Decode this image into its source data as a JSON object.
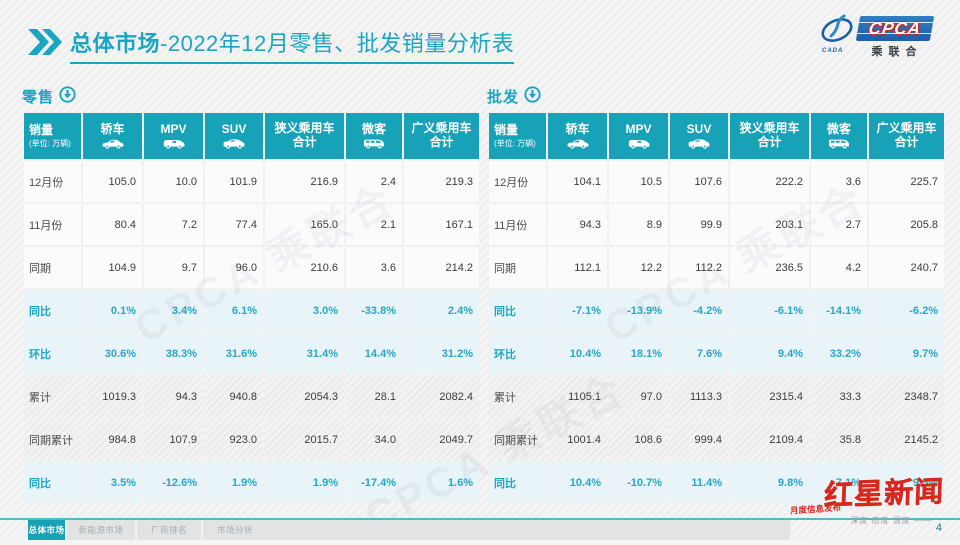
{
  "header": {
    "title_bold": "总体市场",
    "title_rest": "-2022年12月零售、批发销量分析表",
    "logo": {
      "cpca": "CPCA",
      "chenglianhui": "乘联合",
      "cada": "CADA"
    }
  },
  "unit_note": "(单位: 万辆)",
  "columns": [
    {
      "label": "销量",
      "unit": "(单位: 万辆)"
    },
    {
      "label": "轿车",
      "icon": "sedan-icon"
    },
    {
      "label": "MPV",
      "icon": "mpv-icon"
    },
    {
      "label": "SUV",
      "icon": "suv-icon"
    },
    {
      "label": "狭义乘用车",
      "label2": "合计"
    },
    {
      "label": "微客",
      "icon": "minibus-icon"
    },
    {
      "label": "广义乘用车",
      "label2": "合计"
    }
  ],
  "retail": {
    "label": "零售",
    "rows": [
      {
        "label": "12月份",
        "type": "data",
        "values": [
          "105.0",
          "10.0",
          "101.9",
          "216.9",
          "2.4",
          "219.3"
        ]
      },
      {
        "label": "11月份",
        "type": "data",
        "values": [
          "80.4",
          "7.2",
          "77.4",
          "165.0",
          "2.1",
          "167.1"
        ]
      },
      {
        "label": "同期",
        "type": "data",
        "values": [
          "104.9",
          "9.7",
          "96.0",
          "210.6",
          "3.6",
          "214.2"
        ]
      },
      {
        "label": "同比",
        "type": "pct",
        "values": [
          "0.1%",
          "3.4%",
          "6.1%",
          "3.0%",
          "-33.8%",
          "2.4%"
        ]
      },
      {
        "label": "环比",
        "type": "pct",
        "values": [
          "30.6%",
          "38.3%",
          "31.6%",
          "31.4%",
          "14.4%",
          "31.2%"
        ]
      },
      {
        "label": "累计",
        "type": "gray",
        "values": [
          "1019.3",
          "94.3",
          "940.8",
          "2054.3",
          "28.1",
          "2082.4"
        ]
      },
      {
        "label": "同期累计",
        "type": "gray",
        "values": [
          "984.8",
          "107.9",
          "923.0",
          "2015.7",
          "34.0",
          "2049.7"
        ]
      },
      {
        "label": "同比",
        "type": "pct",
        "values": [
          "3.5%",
          "-12.6%",
          "1.9%",
          "1.9%",
          "-17.4%",
          "1.6%"
        ]
      }
    ]
  },
  "wholesale": {
    "label": "批发",
    "rows": [
      {
        "label": "12月份",
        "type": "data",
        "values": [
          "104.1",
          "10.5",
          "107.6",
          "222.2",
          "3.6",
          "225.7"
        ]
      },
      {
        "label": "11月份",
        "type": "data",
        "values": [
          "94.3",
          "8.9",
          "99.9",
          "203.1",
          "2.7",
          "205.8"
        ]
      },
      {
        "label": "同期",
        "type": "data",
        "values": [
          "112.1",
          "12.2",
          "112.2",
          "236.5",
          "4.2",
          "240.7"
        ]
      },
      {
        "label": "同比",
        "type": "pct",
        "values": [
          "-7.1%",
          "-13.9%",
          "-4.2%",
          "-6.1%",
          "-14.1%",
          "-6.2%"
        ]
      },
      {
        "label": "环比",
        "type": "pct",
        "values": [
          "10.4%",
          "18.1%",
          "7.6%",
          "9.4%",
          "33.2%",
          "9.7%"
        ]
      },
      {
        "label": "累计",
        "type": "gray",
        "values": [
          "1105.1",
          "97.0",
          "1113.3",
          "2315.4",
          "33.3",
          "2348.7"
        ]
      },
      {
        "label": "同期累计",
        "type": "gray",
        "values": [
          "1001.4",
          "108.6",
          "999.4",
          "2109.4",
          "35.8",
          "2145.2"
        ]
      },
      {
        "label": "同比",
        "type": "pct",
        "values": [
          "10.4%",
          "-10.7%",
          "11.4%",
          "9.8%",
          "-7.1%",
          "9.5%"
        ]
      }
    ]
  },
  "watermark_text": "CPCA 乘联合",
  "footer": {
    "tabs": [
      {
        "label": "总体市场",
        "active": true
      },
      {
        "label": "新能源市场",
        "active": false
      },
      {
        "label": "厂商排名",
        "active": false
      },
      {
        "label": "市场分析",
        "active": false
      }
    ],
    "news_logo": "红星新闻",
    "news_sub": "月度信息发布",
    "news_tagline": "深度 态度 温度 ——",
    "page_number": "4"
  },
  "colors": {
    "teal": "#17a2b8",
    "title_teal": "#1aa6c0",
    "pct_text": "#27a6c5",
    "pct_bg": "#e8f4f8",
    "news_red": "#d8281e",
    "logo_blue": "#1d5fa6"
  }
}
